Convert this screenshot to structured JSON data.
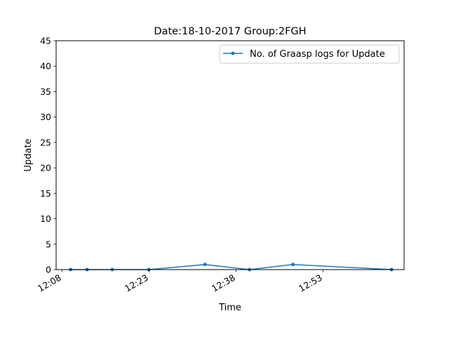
{
  "chart_data": {
    "type": "line",
    "title": "Date:18-10-2017  Group:2FGH",
    "xlabel": "Time",
    "ylabel": "Update",
    "ylim": [
      0,
      45
    ],
    "yticks": [
      0,
      5,
      10,
      15,
      20,
      25,
      30,
      35,
      40,
      45
    ],
    "xlim": [
      "12:07",
      "13:07"
    ],
    "xticks": [
      "12:08",
      "12:23",
      "12:38",
      "12:53"
    ],
    "grid": false,
    "legend_position": "top-right",
    "series": [
      {
        "name": "No. of Graasp logs for Update",
        "color": "#1f77b4",
        "marker": "dot",
        "points": [
          {
            "x": "12:09:30",
            "y": 0
          },
          {
            "x": "12:12:20",
            "y": 0
          },
          {
            "x": "12:16:40",
            "y": 0
          },
          {
            "x": "12:23:00",
            "y": 0
          },
          {
            "x": "12:32:40",
            "y": 1
          },
          {
            "x": "12:40:20",
            "y": 0
          },
          {
            "x": "12:47:50",
            "y": 1
          },
          {
            "x": "13:04:50",
            "y": 0
          }
        ]
      }
    ]
  }
}
